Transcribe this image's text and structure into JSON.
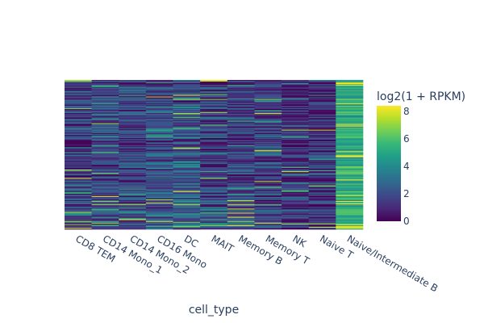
{
  "chart_data": {
    "type": "heatmap",
    "title": "",
    "xlabel": "cell_type",
    "ylabel": "",
    "categories": [
      "CD8 TEM",
      "CD14 Mono_1",
      "CD14 Mono_2",
      "CD16 Mono",
      "DC",
      "MAIT",
      "Memory B",
      "Memory T",
      "NK",
      "Naive T",
      "Naive/Intermediate B"
    ],
    "row_count": 180,
    "column_profiles": [
      {
        "name": "CD8 TEM",
        "base": 1.6,
        "spread": 2.0,
        "hot_rows": [
          0,
          1,
          118,
          170,
          174,
          178
        ]
      },
      {
        "name": "CD14 Mono_1",
        "base": 1.8,
        "spread": 1.6,
        "hot_rows": [
          140,
          150,
          172
        ]
      },
      {
        "name": "CD14 Mono_2",
        "base": 1.8,
        "spread": 1.5,
        "hot_rows": [
          150,
          168
        ]
      },
      {
        "name": "CD16 Mono",
        "base": 2.0,
        "spread": 1.6,
        "hot_rows": [
          20,
          148,
          170
        ]
      },
      {
        "name": "DC",
        "base": 2.2,
        "spread": 2.0,
        "hot_rows": [
          18,
          40,
          150,
          176
        ]
      },
      {
        "name": "MAIT",
        "base": 1.5,
        "spread": 2.0,
        "hot_rows": [
          0,
          1,
          118,
          175
        ]
      },
      {
        "name": "Memory B",
        "base": 1.6,
        "spread": 1.6,
        "hot_rows": [
          145,
          150,
          155,
          160,
          165,
          170,
          175
        ]
      },
      {
        "name": "Memory T",
        "base": 1.6,
        "spread": 1.8,
        "hot_rows": [
          40,
          85,
          172
        ]
      },
      {
        "name": "NK",
        "base": 1.0,
        "spread": 1.6,
        "hot_rows": [
          60,
          110,
          173
        ]
      },
      {
        "name": "Naive T",
        "base": 1.2,
        "spread": 1.8,
        "hot_rows": [
          60,
          173,
          177
        ]
      },
      {
        "name": "Naive/Intermediate B",
        "base": 5.2,
        "spread": 1.0,
        "hot_rows": []
      }
    ],
    "zrange": [
      0,
      8.4
    ],
    "colorscale": "viridis",
    "colorbar": {
      "title": "log2(1 + RPKM)",
      "ticks": [
        "0",
        "2",
        "4",
        "6",
        "8"
      ],
      "tick_values": [
        0,
        2,
        4,
        6,
        8
      ]
    },
    "grid": false,
    "legend": "right"
  }
}
